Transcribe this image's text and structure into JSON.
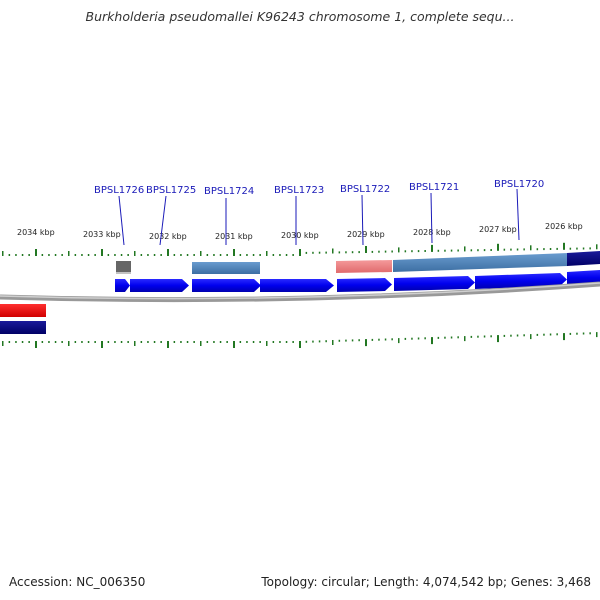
{
  "title": "Burkholderia pseudomallei K96243 chromosome 1, complete sequ...",
  "footer": {
    "accession": "Accession: NC_006350",
    "summary": "Topology: circular; Length: 4,074,542 bp; Genes: 3,468"
  },
  "scale_labels": [
    "2034 kbp",
    "2033 kbp",
    "2032 kbp",
    "2031 kbp",
    "2030 kbp",
    "2029 kbp",
    "2028 kbp",
    "2027 kbp",
    "2026 kbp"
  ],
  "gene_labels": [
    "BPSL1726",
    "BPSL1725",
    "BPSL1724",
    "BPSL1723",
    "BPSL1722",
    "BPSL1721",
    "BPSL1720"
  ],
  "colors": {
    "forward_cds": "#0000ee",
    "steelblue_track": "#4a7fb5",
    "gray_track": "#666666",
    "pink_track": "#ee7f80",
    "navy_track": "#000080",
    "reverse_red": "#ff0000",
    "tick": "#227722",
    "backbone": "#888888",
    "label": "#1a1ab8"
  }
}
